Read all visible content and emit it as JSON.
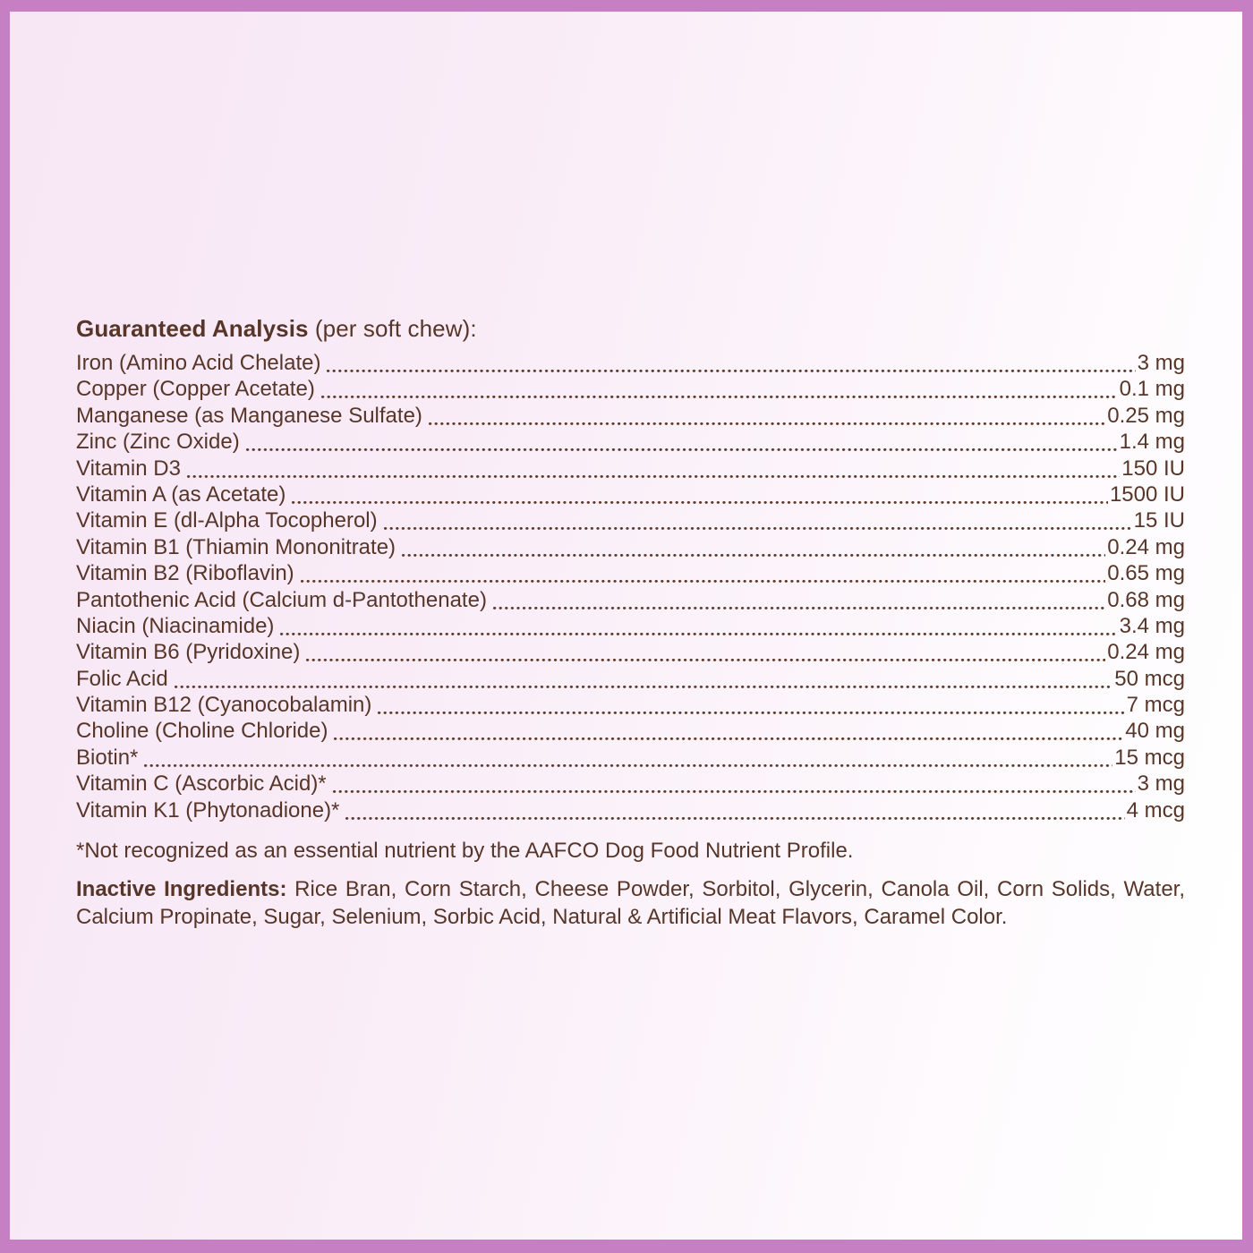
{
  "colors": {
    "border": "#c77fc4",
    "ink": "#573629",
    "background_left": "#f7e6f4",
    "background_right": "#ffffff"
  },
  "label": {
    "title": "Guaranteed Analysis",
    "title_suffix": " (per soft chew):",
    "rows": [
      {
        "name": "Iron (Amino Acid Chelate)",
        "value": "3 mg"
      },
      {
        "name": "Copper (Copper Acetate)",
        "value": "0.1 mg"
      },
      {
        "name": "Manganese (as Manganese Sulfate)",
        "value": "0.25 mg"
      },
      {
        "name": "Zinc (Zinc Oxide)",
        "value": "1.4 mg"
      },
      {
        "name": "Vitamin D3",
        "value": "150 IU"
      },
      {
        "name": "Vitamin A (as Acetate)",
        "value": "1500 IU"
      },
      {
        "name": "Vitamin E (dl-Alpha Tocopherol)",
        "value": "15 IU"
      },
      {
        "name": "Vitamin B1 (Thiamin Mononitrate)",
        "value": "0.24 mg"
      },
      {
        "name": "Vitamin B2 (Riboflavin)",
        "value": "0.65 mg"
      },
      {
        "name": "Pantothenic Acid (Calcium d-Pantothenate)",
        "value": "0.68 mg"
      },
      {
        "name": "Niacin (Niacinamide)",
        "value": "3.4 mg"
      },
      {
        "name": "Vitamin B6 (Pyridoxine)",
        "value": "0.24 mg"
      },
      {
        "name": "Folic Acid",
        "value": "50 mcg"
      },
      {
        "name": "Vitamin B12 (Cyanocobalamin)",
        "value": "7 mcg"
      },
      {
        "name": "Choline (Choline Chloride)",
        "value": "40 mg"
      },
      {
        "name": "Biotin*",
        "value": "15 mcg"
      },
      {
        "name": "Vitamin C (Ascorbic Acid)*",
        "value": "3 mg"
      },
      {
        "name": "Vitamin K1 (Phytonadione)*",
        "value": "4 mcg"
      }
    ],
    "footnote": "*Not recognized as an essential nutrient by the AAFCO Dog Food Nutrient Profile.",
    "inactive_heading": "Inactive Ingredients:",
    "inactive_text": " Rice Bran, Corn Starch, Cheese Powder, Sorbitol, Glycerin, Canola Oil, Corn Solids, Water, Calcium Propinate, Sugar, Selenium, Sorbic Acid, Natural & Artificial Meat Flavors, Caramel Color."
  }
}
